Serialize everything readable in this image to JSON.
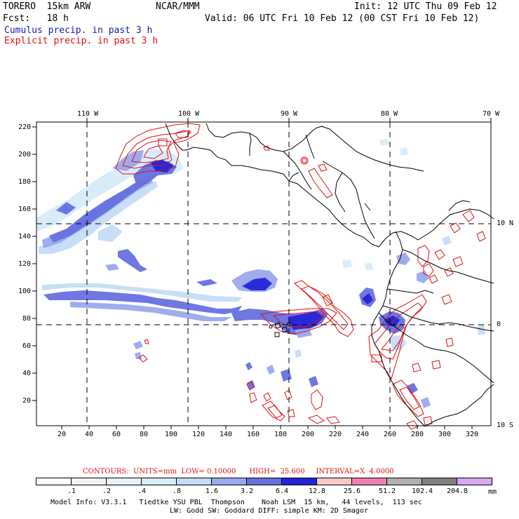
{
  "header": {
    "model": "TORERO  15km ARW",
    "org": "NCAR/MMM",
    "init": "Init: 12 UTC Thu 09 Feb 12",
    "fcst": "Fcst:   18 h",
    "valid": "Valid: 06 UTC Fri 10 Feb 12 (00 CST Fri 10 Feb 12)",
    "field1": "Cumulus precip. in past 3 h",
    "field2": "Explicit precip. in past 3 h"
  },
  "axes": {
    "lon_labels": [
      "110 W",
      "100 W",
      "90 W",
      "80 W",
      "70 W"
    ],
    "lat_labels": [
      "10 N",
      "0",
      "10 S"
    ],
    "y_ticks": [
      "220",
      "200",
      "180",
      "160",
      "140",
      "120",
      "100",
      "80",
      "60",
      "40",
      "20"
    ],
    "x_ticks": [
      "20",
      "40",
      "60",
      "80",
      "100",
      "120",
      "140",
      "160",
      "180",
      "200",
      "220",
      "240",
      "260",
      "280",
      "300",
      "320"
    ]
  },
  "contours": {
    "label": "CONTOURS:  UNITS=mm  LOW= 0.10000      HIGH=  25.600     INTERVAL=X  4.0000"
  },
  "colorbar": {
    "labels": [
      ".1",
      ".2",
      ".4",
      ".8",
      "1.6",
      "3.2",
      "6.4",
      "12.8",
      "25.6",
      "51.2",
      "102.4",
      "204.8"
    ],
    "units": "mm",
    "colors": [
      "#ffffff",
      "#f4f4f8",
      "#e8f2fb",
      "#d6ecf9",
      "#c4dcf5",
      "#9aa8ec",
      "#6670e0",
      "#2424d8",
      "#f8c8c8",
      "#f080b4",
      "#b0b0b0",
      "#808080",
      "#d8a8f0"
    ]
  },
  "footer": {
    "line1": "Model Info: V3.3.1   Tiedtke YSU PBL  Thompson    Noah LSM  15 km,   44 levels,  113 sec",
    "line2": "LW: Godd SW: Goddard DIFF: simple KM: 2D Smagor"
  }
}
